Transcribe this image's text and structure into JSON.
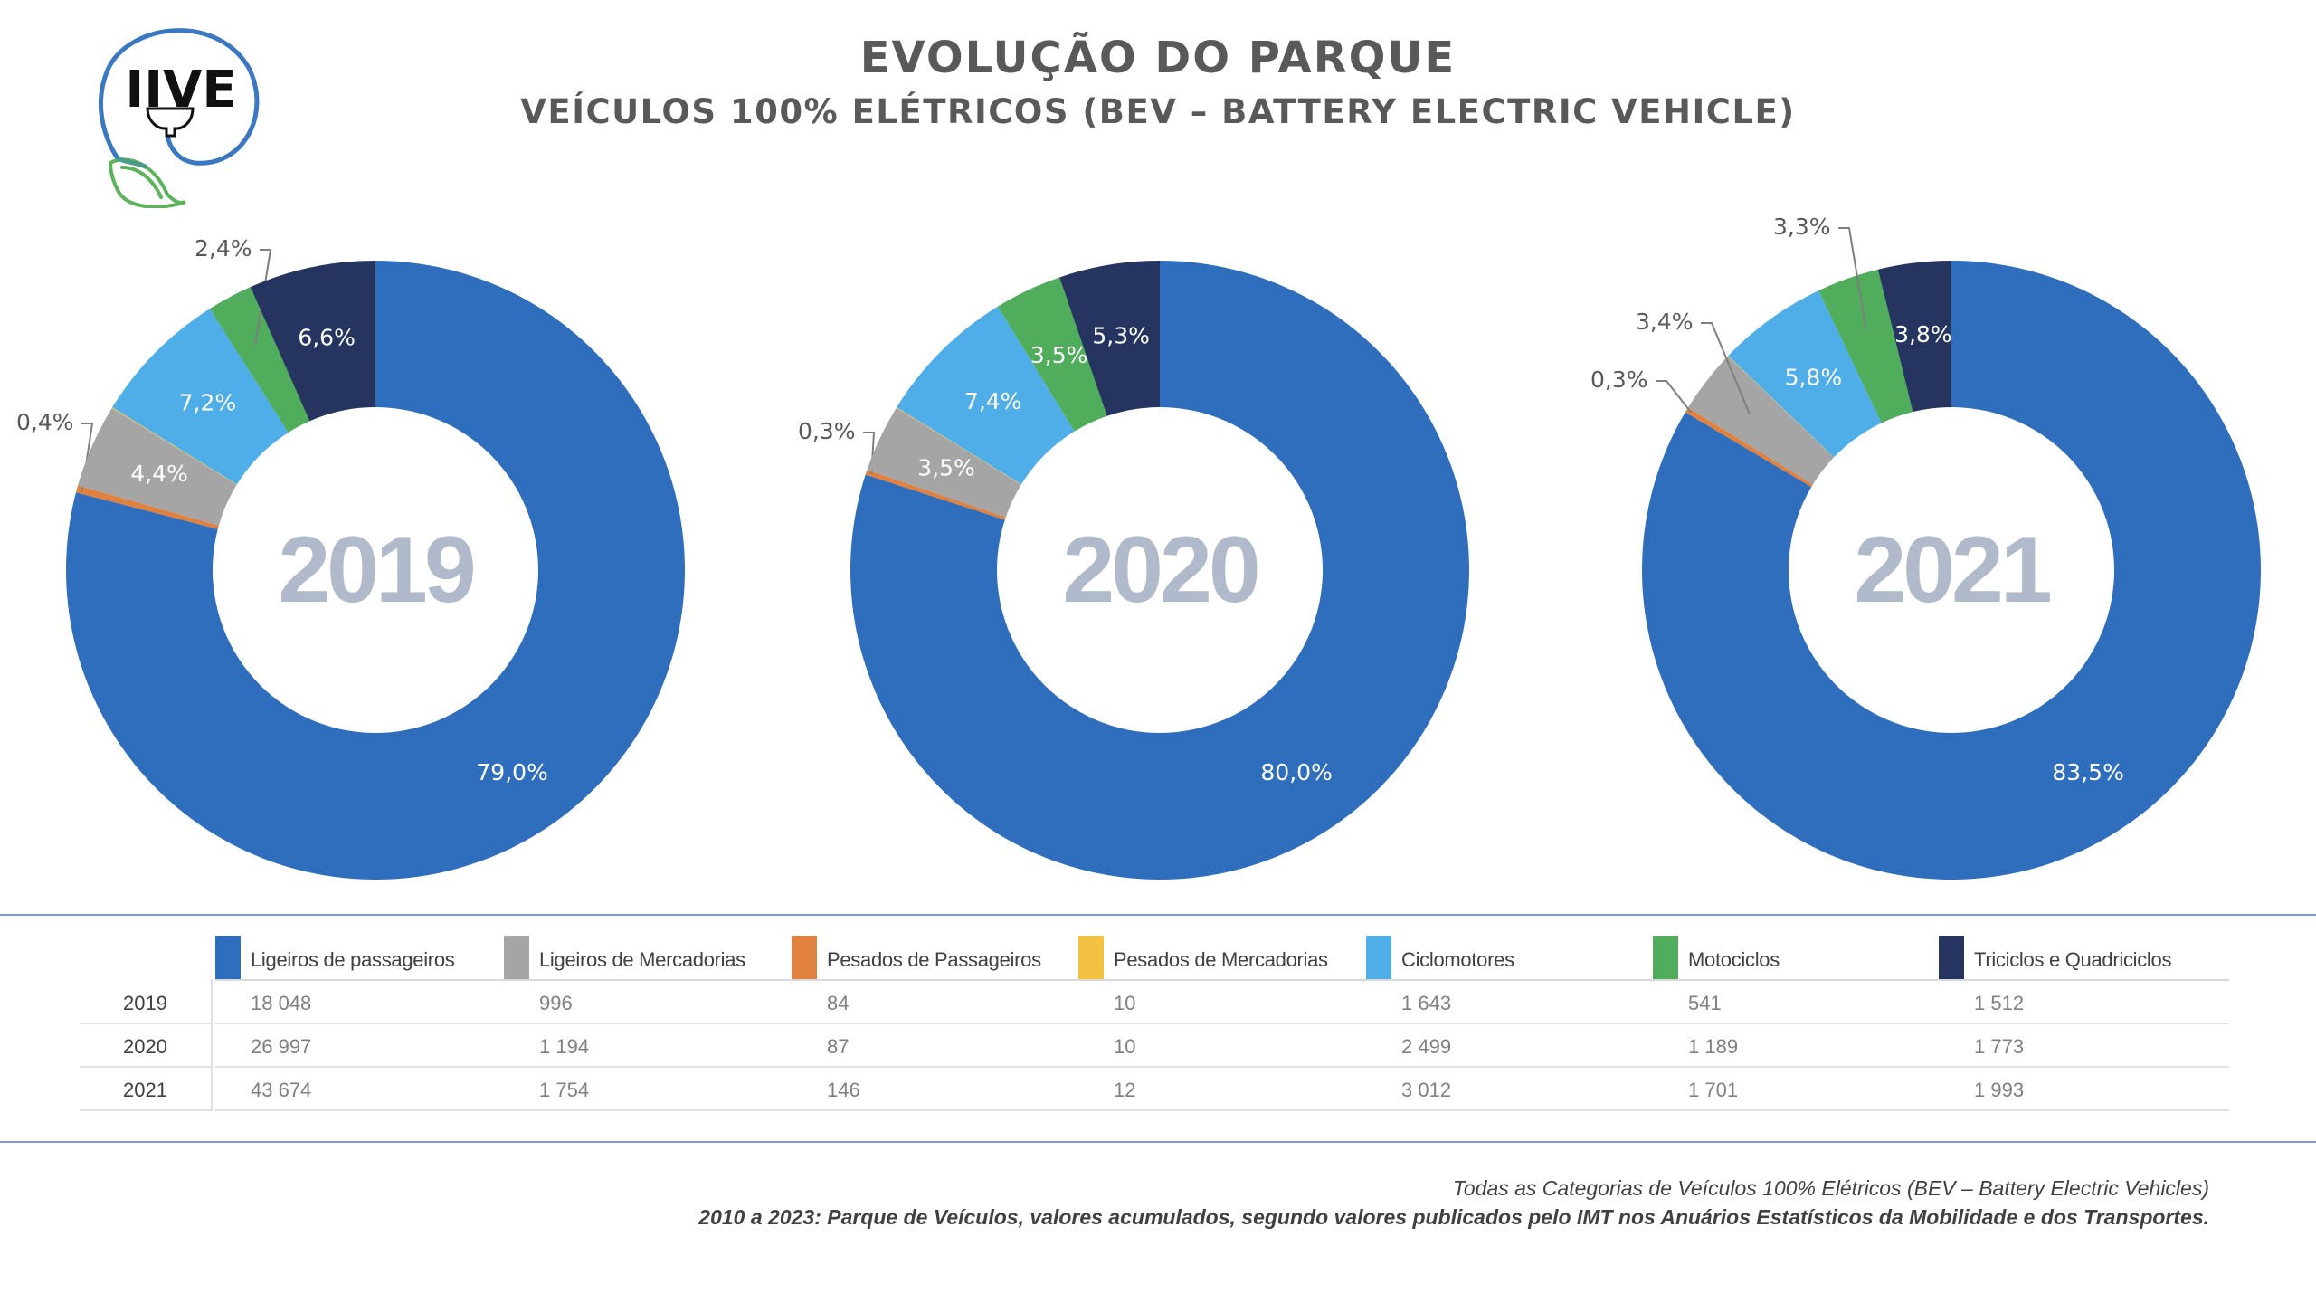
{
  "header": {
    "logo_text": "IIVE",
    "title": "EVOLUÇÃO DO PARQUE",
    "subtitle": "VEÍCULOS 100% ELÉTRICOS (BEV – BATTERY ELECTRIC VEHICLE)"
  },
  "colors": {
    "Ligeiros de passageiros": "#2f6ebd",
    "Ligeiros de Mercadorias": "#a5a5a5",
    "Pesados de Passageiros": "#e0813f",
    "Pesados de Mercadorias": "#f4c242",
    "Ciclomotores": "#4faee8",
    "Motociclos": "#4fad5b",
    "Triciclos e Quadriciclos": "#253560"
  },
  "chart_data": [
    {
      "type": "pie",
      "variant": "donut",
      "title": "2019",
      "categories": [
        "Ligeiros de passageiros",
        "Ligeiros de Mercadorias",
        "Pesados de Passageiros",
        "Pesados de Mercadorias",
        "Ciclomotores",
        "Motociclos",
        "Triciclos e Quadriciclos"
      ],
      "values": [
        18048,
        996,
        84,
        10,
        1643,
        541,
        1512
      ],
      "labels": [
        "79,0%",
        "4,4%",
        "0,4%",
        "",
        "7,2%",
        "2,4%",
        "6,6%"
      ]
    },
    {
      "type": "pie",
      "variant": "donut",
      "title": "2020",
      "categories": [
        "Ligeiros de passageiros",
        "Ligeiros de Mercadorias",
        "Pesados de Passageiros",
        "Pesados de Mercadorias",
        "Ciclomotores",
        "Motociclos",
        "Triciclos e Quadriciclos"
      ],
      "values": [
        26997,
        1194,
        87,
        10,
        2499,
        1189,
        1773
      ],
      "labels": [
        "80,0%",
        "3,5%",
        "0,3%",
        "",
        "7,4%",
        "3,5%",
        "5,3%"
      ]
    },
    {
      "type": "pie",
      "variant": "donut",
      "title": "2021",
      "categories": [
        "Ligeiros de passageiros",
        "Ligeiros de Mercadorias",
        "Pesados de Passageiros",
        "Pesados de Mercadorias",
        "Ciclomotores",
        "Motociclos",
        "Triciclos e Quadriciclos"
      ],
      "values": [
        43674,
        1754,
        146,
        12,
        3012,
        1701,
        1993
      ],
      "labels": [
        "83,5%",
        "3,4%",
        "0,3%",
        "",
        "5,8%",
        "3,3%",
        "3,8%"
      ]
    }
  ],
  "table": {
    "columns": [
      "Ligeiros de passageiros",
      "Ligeiros de Mercadorias",
      "Pesados de Passageiros",
      "Pesados de Mercadorias",
      "Ciclomotores",
      "Motociclos",
      "Triciclos e Quadriciclos"
    ],
    "rows": [
      {
        "year": "2019",
        "values": [
          "18 048",
          "996",
          "84",
          "10",
          "1 643",
          "541",
          "1 512"
        ]
      },
      {
        "year": "2020",
        "values": [
          "26 997",
          "1 194",
          "87",
          "10",
          "2 499",
          "1 189",
          "1 773"
        ]
      },
      {
        "year": "2021",
        "values": [
          "43 674",
          "1 754",
          "146",
          "12",
          "3 012",
          "1 701",
          "1 993"
        ]
      }
    ]
  },
  "footer": {
    "line1": "Todas as Categorias de Veículos 100% Elétricos (BEV – Battery Electric Vehicles)",
    "line2": "2010 a 2023: Parque de Veículos, valores acumulados, segundo valores publicados pelo IMT nos Anuários Estatísticos da Mobilidade e dos Transportes."
  }
}
